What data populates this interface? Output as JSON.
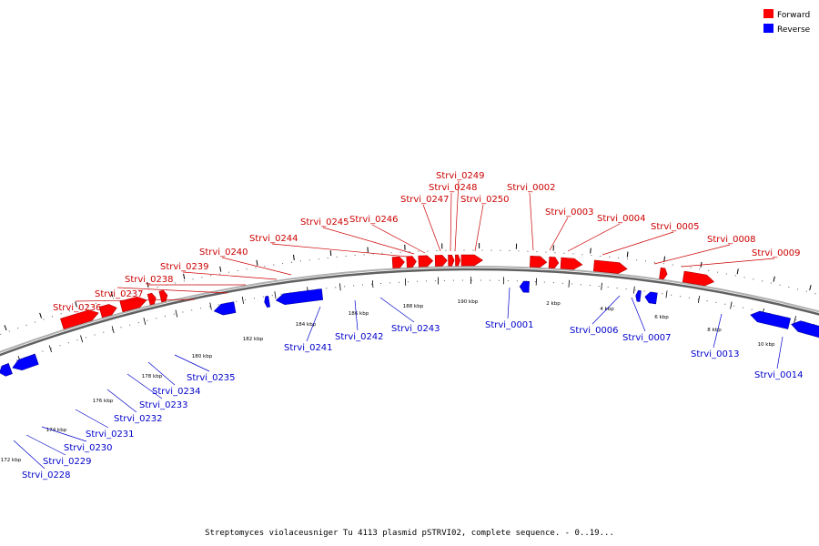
{
  "caption": "Streptomyces violaceusniger Tu 4113 plasmid pSTRVI02, complete sequence. - 0..19...",
  "legend": [
    {
      "label": "Forward",
      "color": "#ff0000"
    },
    {
      "label": "Reverse",
      "color": "#0000ff"
    }
  ],
  "colors": {
    "forward": "#ff0000",
    "reverse": "#0000ff",
    "backbone": "#808080"
  },
  "ticks": [
    {
      "label": "172 kbp"
    },
    {
      "label": "174 kbp"
    },
    {
      "label": "176 kbp"
    },
    {
      "label": "178 kbp"
    },
    {
      "label": "180 kbp"
    },
    {
      "label": "182 kbp"
    },
    {
      "label": "184 kbp"
    },
    {
      "label": "186 kbp"
    },
    {
      "label": "188 kbp"
    },
    {
      "label": "190 kbp"
    },
    {
      "label": "2 kbp"
    },
    {
      "label": "4 kbp"
    },
    {
      "label": "6 kbp"
    },
    {
      "label": "8 kbp"
    },
    {
      "label": "10 kbp"
    }
  ],
  "forward_genes": [
    "Strvi_0236",
    "Strvi_0237",
    "Strvi_0238",
    "Strvi_0239",
    "Strvi_0240",
    "Strvi_0244",
    "Strvi_0245",
    "Strvi_0246",
    "Strvi_0247",
    "Strvi_0248",
    "Strvi_0249",
    "Strvi_0250",
    "Strvi_0002",
    "Strvi_0003",
    "Strvi_0004",
    "Strvi_0005",
    "Strvi_0008",
    "Strvi_0009"
  ],
  "reverse_genes": [
    "Strvi_0228",
    "Strvi_0229",
    "Strvi_0230",
    "Strvi_0231",
    "Strvi_0232",
    "Strvi_0233",
    "Strvi_0234",
    "Strvi_0235",
    "Strvi_0241",
    "Strvi_0242",
    "Strvi_0243",
    "Strvi_0001",
    "Strvi_0006",
    "Strvi_0007",
    "Strvi_0013",
    "Strvi_0014"
  ]
}
